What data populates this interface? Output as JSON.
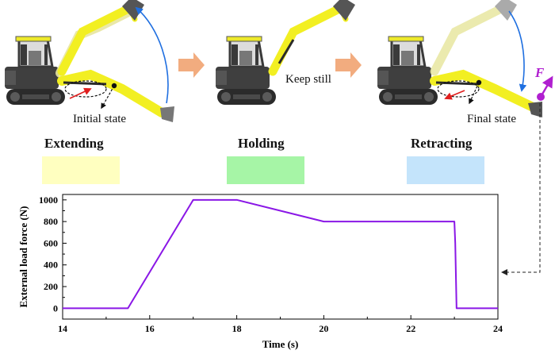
{
  "panels": [
    {
      "id": "extending",
      "title": "Extending",
      "note": "Initial state",
      "swatch": "#ffffc0"
    },
    {
      "id": "holding",
      "title": "Holding",
      "note": "Keep still",
      "swatch": "#a6f5a6"
    },
    {
      "id": "retracting",
      "title": "Retracting",
      "note": "Final state",
      "swatch": "#c4e4fb"
    }
  ],
  "force_symbol": "F",
  "colors": {
    "boom_yellow": "#f2ef22",
    "cab_yellow": "#ede92a",
    "body_dark": "#3f3f3f",
    "track": "#2b2b2b",
    "arrow_orange": "#f2ac7f",
    "motion_blue": "#1f6fe0",
    "extend_red": "#e01e1e",
    "force_magenta": "#b01fd0",
    "curve": "#8a17e6"
  },
  "chart_data": {
    "type": "line",
    "xlabel": "Time (s)",
    "ylabel": "External load force (N)",
    "xlim": [
      14,
      24
    ],
    "ylim": [
      -100,
      1050
    ],
    "xticks": [
      "14",
      "16",
      "18",
      "20",
      "22",
      "24"
    ],
    "yticks": [
      "0",
      "200",
      "400",
      "600",
      "800",
      "1000"
    ],
    "series": [
      {
        "x": [
          14,
          15.5,
          17,
          18,
          20,
          23,
          23.02,
          23.05,
          24
        ],
        "y": [
          0,
          0,
          1000,
          1000,
          800,
          800,
          600,
          0,
          0
        ]
      }
    ]
  }
}
